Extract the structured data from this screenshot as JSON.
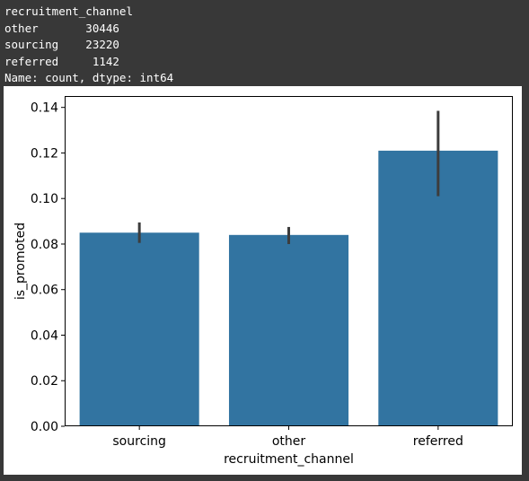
{
  "console": {
    "lines": [
      "recruitment_channel",
      "other       30446",
      "sourcing    23220",
      "referred     1142",
      "Name: count, dtype: int64"
    ]
  },
  "chart_data": {
    "type": "bar",
    "categories": [
      "sourcing",
      "other",
      "referred"
    ],
    "values": [
      0.085,
      0.084,
      0.121
    ],
    "error_bars": [
      [
        0.0805,
        0.0895
      ],
      [
        0.08,
        0.0875
      ],
      [
        0.101,
        0.1385
      ]
    ],
    "xlabel": "recruitment_channel",
    "ylabel": "is_promoted",
    "ylim": [
      0,
      0.145
    ],
    "yticks": [
      0.0,
      0.02,
      0.04,
      0.06,
      0.08,
      0.1,
      0.12,
      0.14
    ],
    "ytick_labels": [
      "0.00",
      "0.02",
      "0.04",
      "0.06",
      "0.08",
      "0.10",
      "0.12",
      "0.14"
    ],
    "grid": false,
    "colors": {
      "bar": "#3274a1",
      "error_bar": "#3d3d3d"
    }
  }
}
